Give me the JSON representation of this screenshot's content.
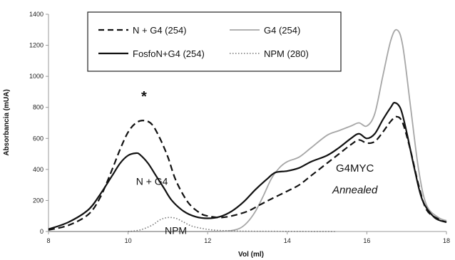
{
  "chart_data": {
    "type": "line",
    "title": "",
    "xlabel": "Vol (ml)",
    "ylabel": "Absorbancia (mUA)",
    "xlim": [
      8,
      18
    ],
    "ylim": [
      0,
      1400
    ],
    "x_ticks": [
      "8",
      "10",
      "12",
      "14",
      "16",
      "18"
    ],
    "y_ticks": [
      "0",
      "200",
      "400",
      "600",
      "800",
      "1000",
      "1200",
      "1400"
    ],
    "grid": false,
    "legend": {
      "placement": "top-left"
    },
    "series": [
      {
        "name": "N + G4 (254)",
        "style": "dashed",
        "color": "#111111",
        "x": [
          8.0,
          8.5,
          9.0,
          9.3,
          9.6,
          9.8,
          10.0,
          10.2,
          10.4,
          10.6,
          10.8,
          11.0,
          11.2,
          11.5,
          11.8,
          12.0,
          12.3,
          12.6,
          13.0,
          13.3,
          13.6,
          14.0,
          14.3,
          14.6,
          15.0,
          15.3,
          15.6,
          15.8,
          16.0,
          16.2,
          16.4,
          16.6,
          16.75,
          16.9,
          17.1,
          17.3,
          17.5,
          17.8,
          18.0
        ],
        "y": [
          10,
          40,
          110,
          220,
          400,
          530,
          640,
          700,
          715,
          690,
          600,
          480,
          330,
          190,
          120,
          100,
          90,
          100,
          130,
          170,
          210,
          260,
          300,
          360,
          440,
          500,
          560,
          590,
          570,
          580,
          640,
          710,
          740,
          700,
          520,
          300,
          140,
          80,
          60
        ]
      },
      {
        "name": "G4 (254)",
        "style": "solid",
        "color": "#a6a6a6",
        "x": [
          8.0,
          9.0,
          10.0,
          11.0,
          12.0,
          12.5,
          12.8,
          13.0,
          13.2,
          13.4,
          13.6,
          13.8,
          14.0,
          14.3,
          14.6,
          15.0,
          15.3,
          15.6,
          15.8,
          16.0,
          16.2,
          16.4,
          16.6,
          16.75,
          16.9,
          17.1,
          17.3,
          17.5,
          17.8,
          18.0
        ],
        "y": [
          0,
          0,
          0,
          0,
          0,
          3,
          20,
          60,
          130,
          230,
          340,
          410,
          450,
          480,
          540,
          620,
          650,
          680,
          700,
          680,
          760,
          1000,
          1230,
          1300,
          1200,
          800,
          400,
          170,
          90,
          70
        ]
      },
      {
        "name": "FosfoN+G4 (254)",
        "style": "solid",
        "color": "#111111",
        "x": [
          8.0,
          8.5,
          9.0,
          9.3,
          9.6,
          9.8,
          10.0,
          10.2,
          10.3,
          10.5,
          10.7,
          10.9,
          11.1,
          11.4,
          11.7,
          12.0,
          12.3,
          12.6,
          12.9,
          13.2,
          13.5,
          13.7,
          14.0,
          14.3,
          14.6,
          15.0,
          15.3,
          15.6,
          15.8,
          16.0,
          16.2,
          16.4,
          16.6,
          16.7,
          16.85,
          17.0,
          17.2,
          17.4,
          17.7,
          18.0
        ],
        "y": [
          15,
          60,
          140,
          240,
          360,
          440,
          490,
          505,
          495,
          440,
          360,
          280,
          200,
          130,
          95,
          85,
          95,
          130,
          190,
          270,
          340,
          380,
          390,
          410,
          450,
          490,
          540,
          600,
          630,
          600,
          630,
          720,
          800,
          830,
          790,
          640,
          400,
          200,
          90,
          60
        ]
      },
      {
        "name": "NPM (280)",
        "style": "dotted",
        "color": "#777777",
        "x": [
          10.0,
          10.3,
          10.6,
          10.8,
          11.0,
          11.2,
          11.4,
          11.6,
          11.9,
          12.2,
          12.6,
          13.0,
          14.0,
          15.2
        ],
        "y": [
          0,
          10,
          40,
          75,
          90,
          85,
          60,
          35,
          18,
          8,
          4,
          2,
          1,
          0
        ]
      }
    ],
    "annotations": [
      {
        "text": "*",
        "x": 10.4,
        "y": 840,
        "size": 20,
        "weight": "bold",
        "style": "normal"
      },
      {
        "text": "N + G4",
        "x": 10.6,
        "y": 300,
        "size": 14,
        "weight": "normal",
        "style": "normal"
      },
      {
        "text": "NPM",
        "x": 11.2,
        "y": -15,
        "size": 14,
        "weight": "normal",
        "style": "normal"
      },
      {
        "text": "G4MYC",
        "x": 15.7,
        "y": 385,
        "size": 15,
        "weight": "normal",
        "style": "normal"
      },
      {
        "text": "Annealed",
        "x": 15.7,
        "y": 245,
        "size": 15,
        "weight": "normal",
        "style": "italic"
      }
    ]
  }
}
